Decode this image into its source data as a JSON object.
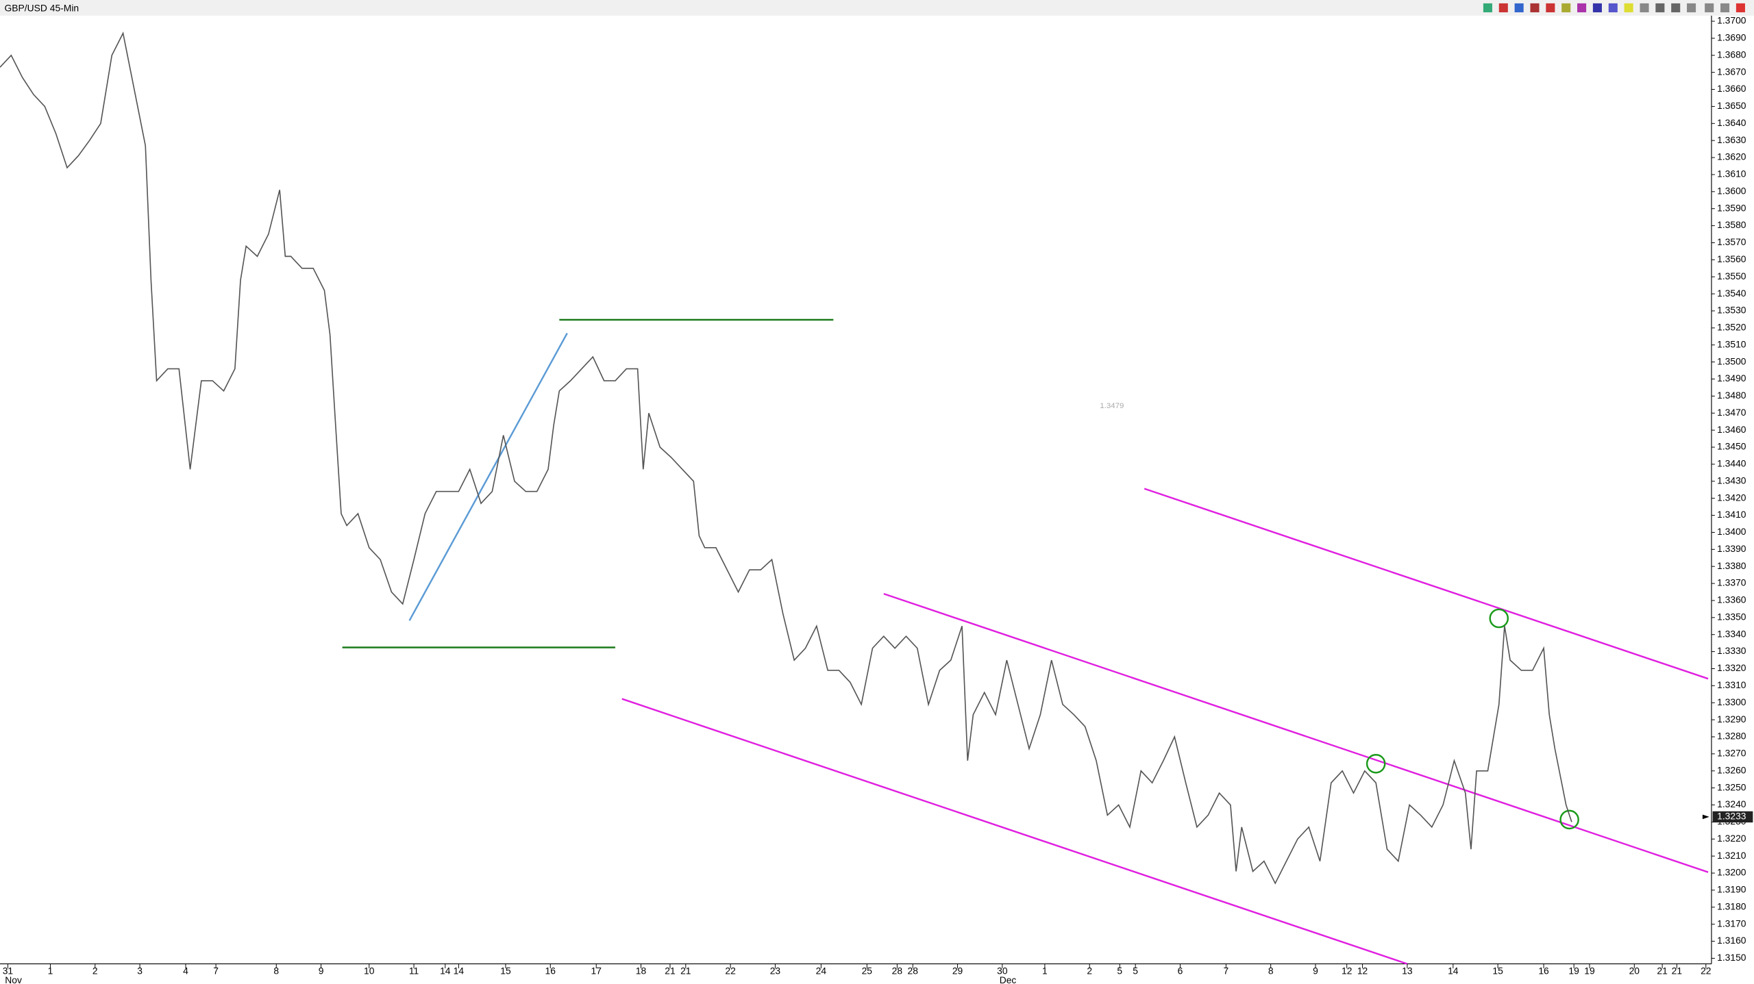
{
  "chart_data": {
    "type": "line",
    "title": "GBP/USD 45-Min",
    "annotation": "1.3479",
    "last_price_label": "1.3233",
    "last_price": 1.3233,
    "x": [
      0,
      10,
      20,
      30,
      40,
      50,
      60,
      70,
      80,
      90,
      100,
      110,
      120,
      130,
      135,
      140,
      150,
      160,
      170,
      180,
      190,
      200,
      210,
      215,
      220,
      230,
      240,
      250,
      255,
      260,
      270,
      280,
      290,
      295,
      300,
      305,
      310,
      320,
      330,
      340,
      350,
      360,
      370,
      380,
      390,
      400,
      410,
      420,
      430,
      440,
      450,
      460,
      470,
      480,
      490,
      495,
      500,
      510,
      520,
      530,
      540,
      550,
      560,
      570,
      575,
      580,
      590,
      600,
      610,
      620,
      625,
      630,
      640,
      650,
      660,
      670,
      680,
      690,
      700,
      710,
      720,
      730,
      740,
      750,
      760,
      770,
      780,
      790,
      800,
      810,
      820,
      830,
      840,
      850,
      860,
      865,
      870,
      880,
      890,
      900,
      910,
      920,
      930,
      940,
      950,
      960,
      970,
      980,
      990,
      1000,
      1010,
      1020,
      1030,
      1040,
      1050,
      1060,
      1070,
      1080,
      1090,
      1100,
      1105,
      1110,
      1120,
      1130,
      1140,
      1150,
      1160,
      1170,
      1180,
      1190,
      1200,
      1210,
      1220,
      1230,
      1240,
      1250,
      1260,
      1270,
      1280,
      1290,
      1300,
      1310,
      1315,
      1320,
      1330,
      1340,
      1345,
      1350,
      1360,
      1370,
      1380,
      1385,
      1390,
      1400,
      1405
    ],
    "series": [
      {
        "name": "GBP/USD",
        "color": "#555555",
        "values": [
          1.3673,
          1.368,
          1.3667,
          1.3657,
          1.365,
          1.3634,
          1.3614,
          1.3621,
          1.363,
          1.364,
          1.368,
          1.3693,
          1.366,
          1.3627,
          1.3548,
          1.3489,
          1.3496,
          1.3496,
          1.3437,
          1.3489,
          1.3489,
          1.3483,
          1.3496,
          1.3548,
          1.3568,
          1.3562,
          1.3575,
          1.3601,
          1.3562,
          1.3562,
          1.3555,
          1.3555,
          1.3542,
          1.3516,
          1.3463,
          1.3411,
          1.3404,
          1.3411,
          1.3391,
          1.3384,
          1.3365,
          1.3358,
          1.3384,
          1.3411,
          1.3424,
          1.3424,
          1.3424,
          1.3437,
          1.3417,
          1.3424,
          1.3457,
          1.343,
          1.3424,
          1.3424,
          1.3437,
          1.3463,
          1.3483,
          1.3489,
          1.3496,
          1.3503,
          1.3489,
          1.3489,
          1.3496,
          1.3496,
          1.3437,
          1.347,
          1.345,
          1.3444,
          1.3437,
          1.343,
          1.3398,
          1.3391,
          1.3391,
          1.3378,
          1.3365,
          1.3378,
          1.3378,
          1.3384,
          1.3352,
          1.3325,
          1.3332,
          1.3345,
          1.3319,
          1.3319,
          1.3312,
          1.3299,
          1.3332,
          1.3339,
          1.3332,
          1.3339,
          1.3332,
          1.3299,
          1.3319,
          1.3325,
          1.3345,
          1.3266,
          1.3293,
          1.3306,
          1.3293,
          1.3325,
          1.3299,
          1.3273,
          1.3293,
          1.3325,
          1.3299,
          1.3293,
          1.3286,
          1.3266,
          1.3234,
          1.324,
          1.3227,
          1.326,
          1.3253,
          1.3266,
          1.328,
          1.3253,
          1.3227,
          1.3234,
          1.3247,
          1.324,
          1.3201,
          1.3227,
          1.3201,
          1.3207,
          1.3194,
          1.3207,
          1.322,
          1.3227,
          1.3207,
          1.3253,
          1.326,
          1.3247,
          1.326,
          1.3253,
          1.3214,
          1.3207,
          1.324,
          1.3234,
          1.3227,
          1.324,
          1.3266,
          1.3247,
          1.3214,
          1.326,
          1.326,
          1.3299,
          1.3345,
          1.3325,
          1.3319,
          1.3319,
          1.3332,
          1.3293,
          1.3273,
          1.324,
          1.323
        ]
      }
    ],
    "xlim": [
      0,
      1530
    ],
    "xticks": [
      {
        "value": 7,
        "label": "31"
      },
      {
        "value": 45,
        "label": "1"
      },
      {
        "value": 85,
        "label": "2"
      },
      {
        "value": 125,
        "label": "3"
      },
      {
        "value": 166,
        "label": "4"
      },
      {
        "value": 193,
        "label": "7"
      },
      {
        "value": 247,
        "label": "8"
      },
      {
        "value": 287,
        "label": "9"
      },
      {
        "value": 330,
        "label": "10"
      },
      {
        "value": 370,
        "label": "11"
      },
      {
        "value": 398,
        "label": "14"
      },
      {
        "value": 410,
        "label": "14"
      },
      {
        "value": 452,
        "label": "15"
      },
      {
        "value": 492,
        "label": "16"
      },
      {
        "value": 533,
        "label": "17"
      },
      {
        "value": 573,
        "label": "18"
      },
      {
        "value": 599,
        "label": "21"
      },
      {
        "value": 613,
        "label": "21"
      },
      {
        "value": 653,
        "label": "22"
      },
      {
        "value": 693,
        "label": "23"
      },
      {
        "value": 734,
        "label": "24"
      },
      {
        "value": 775,
        "label": "25"
      },
      {
        "value": 802,
        "label": "28"
      },
      {
        "value": 816,
        "label": "28"
      },
      {
        "value": 856,
        "label": "29"
      },
      {
        "value": 896,
        "label": "30"
      },
      {
        "value": 934,
        "label": "1"
      },
      {
        "value": 974,
        "label": "2"
      },
      {
        "value": 1001,
        "label": "5"
      },
      {
        "value": 1015,
        "label": "5"
      },
      {
        "value": 1055,
        "label": "6"
      },
      {
        "value": 1096,
        "label": "7"
      },
      {
        "value": 1136,
        "label": "8"
      },
      {
        "value": 1176,
        "label": "9"
      },
      {
        "value": 1204,
        "label": "12"
      },
      {
        "value": 1218,
        "label": "12"
      },
      {
        "value": 1258,
        "label": "13"
      },
      {
        "value": 1299,
        "label": "14"
      },
      {
        "value": 1339,
        "label": "15"
      },
      {
        "value": 1380,
        "label": "16"
      },
      {
        "value": 1407,
        "label": "19"
      },
      {
        "value": 1421,
        "label": "19"
      },
      {
        "value": 1461,
        "label": "20"
      },
      {
        "value": 1486,
        "label": "21"
      },
      {
        "value": 1499,
        "label": "21"
      },
      {
        "value": 1525,
        "label": "22"
      }
    ],
    "month_labels": [
      {
        "value": 12,
        "label": "Nov"
      },
      {
        "value": 901,
        "label": "Dec"
      }
    ],
    "ylim": [
      1.315,
      1.37
    ],
    "yticks": [
      {
        "value": 1.315,
        "label": "1.3150"
      },
      {
        "value": 1.316,
        "label": "1.3160"
      },
      {
        "value": 1.317,
        "label": "1.3170"
      },
      {
        "value": 1.318,
        "label": "1.3180"
      },
      {
        "value": 1.319,
        "label": "1.3190"
      },
      {
        "value": 1.32,
        "label": "1.3200"
      },
      {
        "value": 1.321,
        "label": "1.3210"
      },
      {
        "value": 1.322,
        "label": "1.3220"
      },
      {
        "value": 1.323,
        "label": "1.3230"
      },
      {
        "value": 1.324,
        "label": "1.3240"
      },
      {
        "value": 1.325,
        "label": "1.3250"
      },
      {
        "value": 1.326,
        "label": "1.3260"
      },
      {
        "value": 1.327,
        "label": "1.3270"
      },
      {
        "value": 1.328,
        "label": "1.3280"
      },
      {
        "value": 1.329,
        "label": "1.3290"
      },
      {
        "value": 1.33,
        "label": "1.3300"
      },
      {
        "value": 1.331,
        "label": "1.3310"
      },
      {
        "value": 1.332,
        "label": "1.3320"
      },
      {
        "value": 1.333,
        "label": "1.3330"
      },
      {
        "value": 1.334,
        "label": "1.3340"
      },
      {
        "value": 1.335,
        "label": "1.3350"
      },
      {
        "value": 1.336,
        "label": "1.3360"
      },
      {
        "value": 1.337,
        "label": "1.3370"
      },
      {
        "value": 1.338,
        "label": "1.3380"
      },
      {
        "value": 1.339,
        "label": "1.3390"
      },
      {
        "value": 1.34,
        "label": "1.3400"
      },
      {
        "value": 1.341,
        "label": "1.3410"
      },
      {
        "value": 1.342,
        "label": "1.3420"
      },
      {
        "value": 1.343,
        "label": "1.3430"
      },
      {
        "value": 1.344,
        "label": "1.3440"
      },
      {
        "value": 1.345,
        "label": "1.3450"
      },
      {
        "value": 1.346,
        "label": "1.3460"
      },
      {
        "value": 1.347,
        "label": "1.3470"
      },
      {
        "value": 1.348,
        "label": "1.3480"
      },
      {
        "value": 1.349,
        "label": "1.3490"
      },
      {
        "value": 1.35,
        "label": "1.3500"
      },
      {
        "value": 1.351,
        "label": "1.3510"
      },
      {
        "value": 1.352,
        "label": "1.3520"
      },
      {
        "value": 1.353,
        "label": "1.3530"
      },
      {
        "value": 1.354,
        "label": "1.3540"
      },
      {
        "value": 1.355,
        "label": "1.3550"
      },
      {
        "value": 1.356,
        "label": "1.3560"
      },
      {
        "value": 1.357,
        "label": "1.3570"
      },
      {
        "value": 1.358,
        "label": "1.3580"
      },
      {
        "value": 1.359,
        "label": "1.3590"
      },
      {
        "value": 1.36,
        "label": "1.3600"
      },
      {
        "value": 1.361,
        "label": "1.3610"
      },
      {
        "value": 1.362,
        "label": "1.3620"
      },
      {
        "value": 1.363,
        "label": "1.3630"
      },
      {
        "value": 1.364,
        "label": "1.3640"
      },
      {
        "value": 1.365,
        "label": "1.3650"
      },
      {
        "value": 1.366,
        "label": "1.3660"
      },
      {
        "value": 1.367,
        "label": "1.3670"
      },
      {
        "value": 1.368,
        "label": "1.3680"
      },
      {
        "value": 1.369,
        "label": "1.3690"
      },
      {
        "value": 1.37,
        "label": "1.3700"
      }
    ],
    "grid": false
  }
}
